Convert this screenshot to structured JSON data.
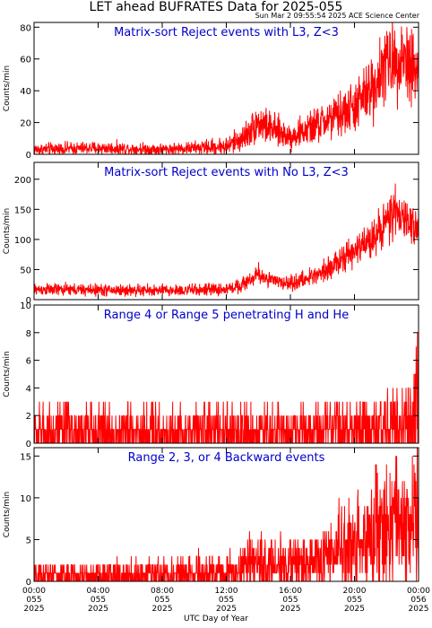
{
  "header": {
    "title": "LET ahead BUFRATES Data for 2025-055",
    "timestamp": "Sun Mar  2 09:55:54 2025 ACE Science Center"
  },
  "x_axis": {
    "label": "UTC Day of Year",
    "ticks": [
      {
        "time": "00:00",
        "day": "055",
        "year": "2025"
      },
      {
        "time": "04:00",
        "day": "055",
        "year": "2025"
      },
      {
        "time": "08:00",
        "day": "055",
        "year": "2025"
      },
      {
        "time": "12:00",
        "day": "055",
        "year": "2025"
      },
      {
        "time": "16:00",
        "day": "055",
        "year": "2025"
      },
      {
        "time": "20:00",
        "day": "055",
        "year": "2025"
      },
      {
        "time": "00:00",
        "day": "056",
        "year": "2025"
      }
    ]
  },
  "colors": {
    "series": "#ff0000",
    "title_text": "#0000cc",
    "axes": "#000000"
  },
  "chart_data": [
    {
      "type": "line",
      "title": "Matrix-sort Reject events with L3, Z<3",
      "ylabel": "Counts/min",
      "xlim_hours": [
        0,
        24
      ],
      "ylim": [
        0,
        83
      ],
      "yticks": [
        0,
        20,
        40,
        60,
        80
      ],
      "envelope": {
        "x_hours": [
          0,
          4,
          8,
          10,
          12,
          13,
          14,
          15,
          16,
          17,
          18,
          19,
          20,
          21,
          22,
          22.5,
          23,
          23.5,
          24
        ],
        "y_mean": [
          3,
          4,
          3,
          4,
          5,
          10,
          20,
          15,
          11,
          15,
          20,
          24,
          30,
          40,
          58,
          60,
          62,
          58,
          52
        ],
        "y_spread": [
          2,
          2,
          2,
          2,
          3,
          4,
          6,
          5,
          4,
          5,
          6,
          7,
          8,
          10,
          12,
          12,
          13,
          12,
          12
        ]
      }
    },
    {
      "type": "line",
      "title": "Matrix-sort Reject events with No L3, Z<3",
      "ylabel": "Counts/min",
      "xlim_hours": [
        0,
        24
      ],
      "ylim": [
        0,
        228
      ],
      "yticks": [
        0,
        50,
        100,
        150,
        200
      ],
      "envelope": {
        "x_hours": [
          0,
          4,
          8,
          12,
          13,
          14,
          15,
          16,
          17,
          18,
          19,
          20,
          21,
          22,
          22.5,
          23,
          23.5,
          24
        ],
        "y_mean": [
          17,
          16,
          15,
          17,
          25,
          42,
          30,
          27,
          34,
          48,
          62,
          80,
          100,
          130,
          142,
          135,
          125,
          125
        ],
        "y_spread": [
          5,
          5,
          5,
          5,
          6,
          8,
          6,
          6,
          7,
          9,
          10,
          12,
          14,
          18,
          20,
          18,
          16,
          16
        ]
      }
    },
    {
      "type": "line",
      "title": "Range 4 or Range 5 penetrating H and He",
      "ylabel": "Counts/min",
      "xlim_hours": [
        0,
        24
      ],
      "ylim": [
        0,
        10
      ],
      "yticks": [
        0,
        2,
        4,
        6,
        8,
        10
      ],
      "discrete": true,
      "envelope": {
        "x_hours": [
          0,
          12,
          20,
          23,
          24
        ],
        "y_mean": [
          0.8,
          0.8,
          0.9,
          1.2,
          2.5
        ],
        "y_spread": [
          1,
          1,
          1,
          1.5,
          3
        ]
      }
    },
    {
      "type": "line",
      "title": "Range 2, 3, or 4 Backward events",
      "ylabel": "Counts/min",
      "xlim_hours": [
        0,
        24
      ],
      "ylim": [
        0,
        16
      ],
      "yticks": [
        0,
        5,
        10,
        15
      ],
      "discrete": true,
      "envelope": {
        "x_hours": [
          0,
          8,
          12,
          14,
          16,
          18,
          20,
          22,
          23,
          24
        ],
        "y_mean": [
          0.6,
          0.7,
          1.0,
          2.0,
          2.0,
          2.5,
          4.5,
          6.5,
          7,
          7
        ],
        "y_spread": [
          0.8,
          1,
          1.2,
          1.8,
          1.5,
          1.8,
          3,
          4,
          4,
          4
        ]
      }
    }
  ]
}
